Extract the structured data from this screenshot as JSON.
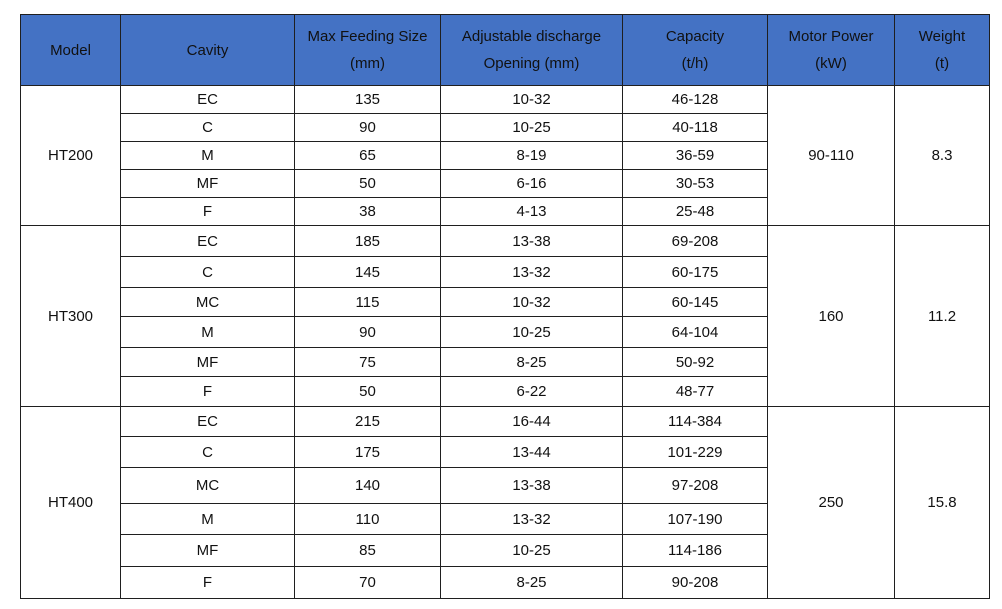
{
  "headers": [
    {
      "line1": "Model",
      "line2": ""
    },
    {
      "line1": "Cavity",
      "line2": ""
    },
    {
      "line1": "Max Feeding Size",
      "line2": "(mm)"
    },
    {
      "line1": "Adjustable discharge",
      "line2": "Opening (mm)"
    },
    {
      "line1": "Capacity",
      "line2": "(t/h)"
    },
    {
      "line1": "Motor Power",
      "line2": "(kW)"
    },
    {
      "line1": "Weight",
      "line2": "(t)"
    }
  ],
  "models": [
    {
      "model": "HT200",
      "motor_power": "90-110",
      "weight": "8.3",
      "rows": [
        {
          "cavity": "EC",
          "feed": "135",
          "discharge": "10-32",
          "capacity": "46-128"
        },
        {
          "cavity": "C",
          "feed": "90",
          "discharge": "10-25",
          "capacity": "40-118"
        },
        {
          "cavity": "M",
          "feed": "65",
          "discharge": "8-19",
          "capacity": "36-59"
        },
        {
          "cavity": "MF",
          "feed": "50",
          "discharge": "6-16",
          "capacity": "30-53"
        },
        {
          "cavity": "F",
          "feed": "38",
          "discharge": "4-13",
          "capacity": "25-48"
        }
      ]
    },
    {
      "model": "HT300",
      "motor_power": "160",
      "weight": "11.2",
      "rows": [
        {
          "cavity": "EC",
          "feed": "185",
          "discharge": "13-38",
          "capacity": "69-208"
        },
        {
          "cavity": "C",
          "feed": "145",
          "discharge": "13-32",
          "capacity": "60-175"
        },
        {
          "cavity": "MC",
          "feed": "115",
          "discharge": "10-32",
          "capacity": "60-145"
        },
        {
          "cavity": "M",
          "feed": "90",
          "discharge": "10-25",
          "capacity": "64-104"
        },
        {
          "cavity": "MF",
          "feed": "75",
          "discharge": "8-25",
          "capacity": "50-92"
        },
        {
          "cavity": "F",
          "feed": "50",
          "discharge": "6-22",
          "capacity": "48-77"
        }
      ]
    },
    {
      "model": "HT400",
      "motor_power": "250",
      "weight": "15.8",
      "rows": [
        {
          "cavity": "EC",
          "feed": "215",
          "discharge": "16-44",
          "capacity": "114-384"
        },
        {
          "cavity": "C",
          "feed": "175",
          "discharge": "13-44",
          "capacity": "101-229"
        },
        {
          "cavity": "MC",
          "feed": "140",
          "discharge": "13-38",
          "capacity": "97-208"
        },
        {
          "cavity": "M",
          "feed": "110",
          "discharge": "13-32",
          "capacity": "107-190"
        },
        {
          "cavity": "MF",
          "feed": "85",
          "discharge": "10-25",
          "capacity": "114-186"
        },
        {
          "cavity": "F",
          "feed": "70",
          "discharge": "8-25",
          "capacity": "90-208"
        }
      ]
    }
  ]
}
